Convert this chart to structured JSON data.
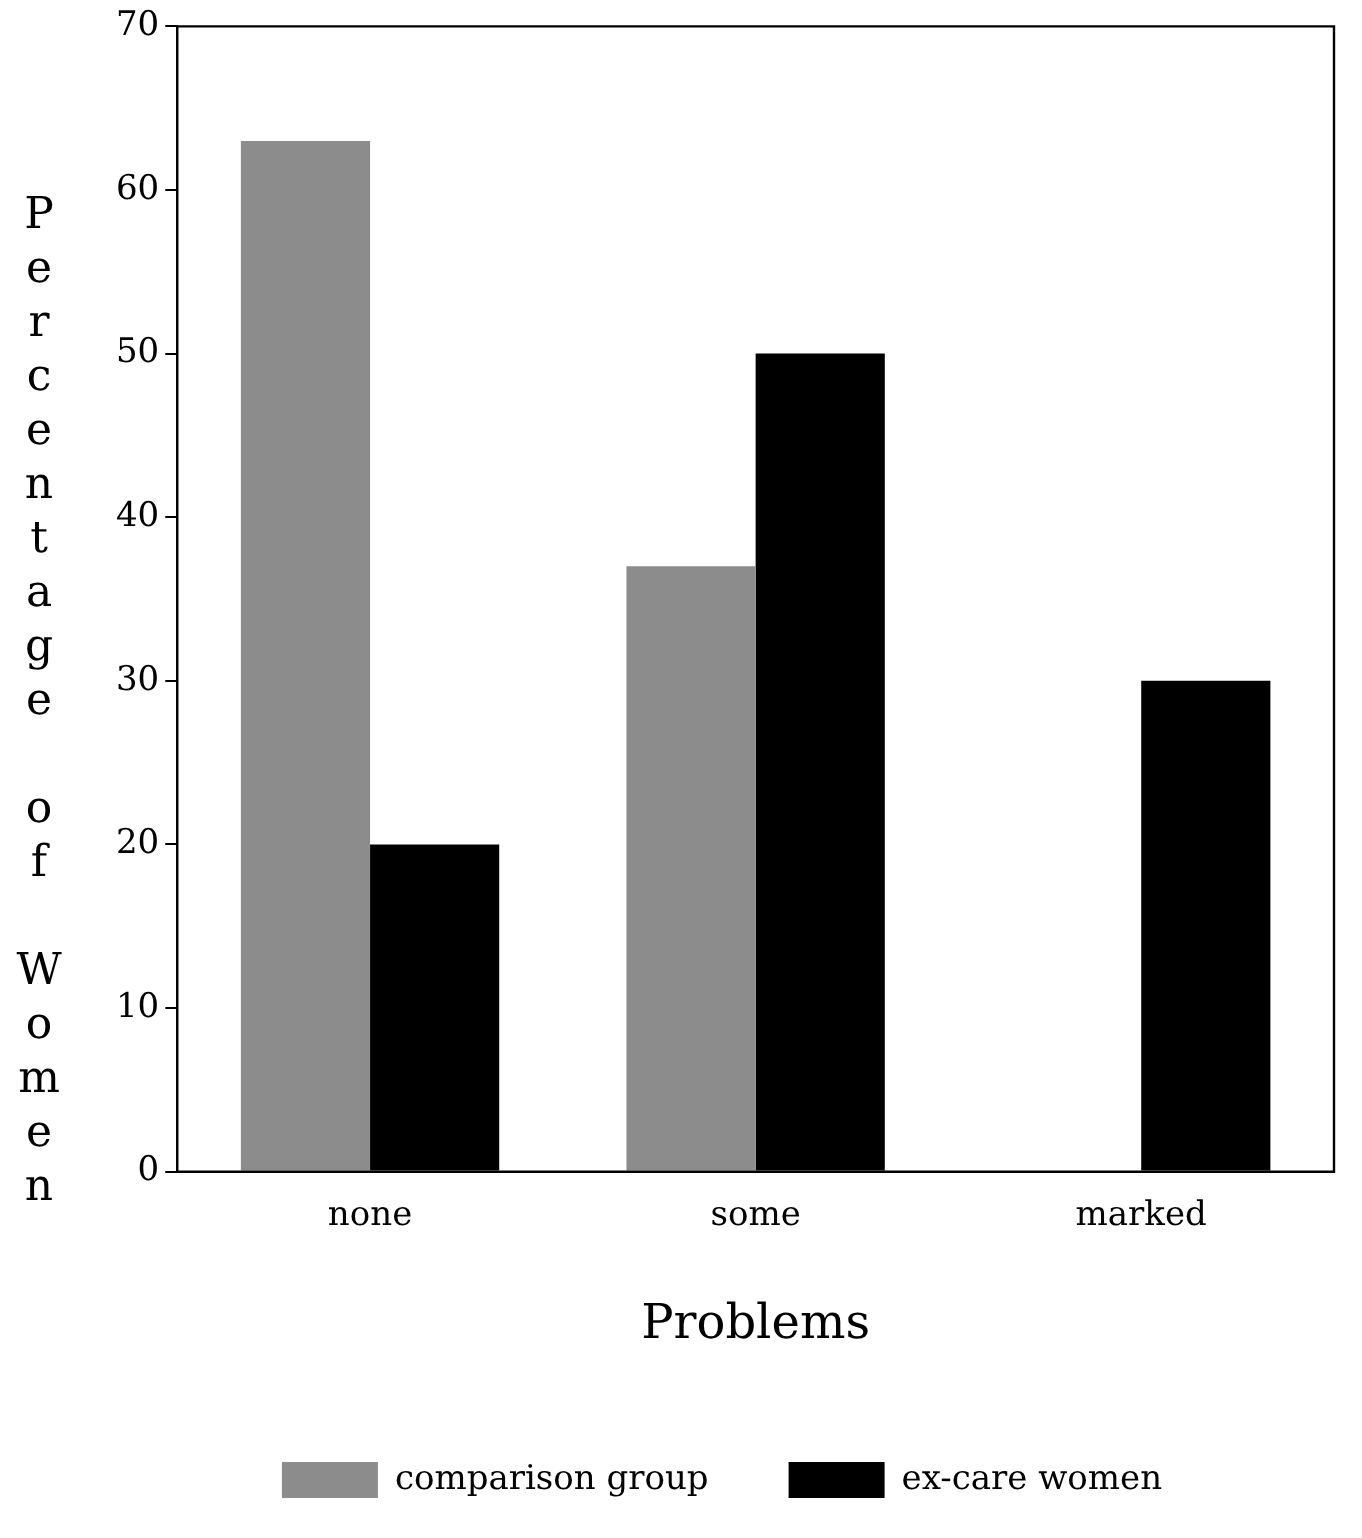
{
  "chart_data": {
    "type": "bar",
    "xlabel": "Problems",
    "ylabel": "Percentage of Women",
    "categories": [
      "none",
      "some",
      "marked"
    ],
    "series": [
      {
        "name": "comparison group",
        "color": "#8c8c8c",
        "values": [
          63,
          37,
          0
        ]
      },
      {
        "name": "ex-care women",
        "color": "#000000",
        "values": [
          20,
          50,
          30
        ]
      }
    ],
    "ylim": [
      0,
      70
    ],
    "yticks": [
      0,
      10,
      20,
      30,
      40,
      50,
      60,
      70
    ],
    "grid": false,
    "legend": "bottom"
  }
}
